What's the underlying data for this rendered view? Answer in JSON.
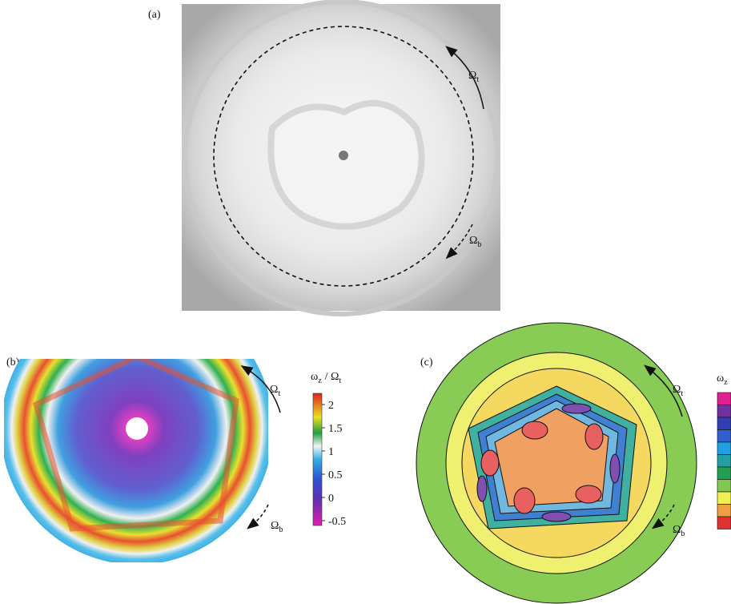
{
  "figure": {
    "panel_a": {
      "label": "(a)",
      "omega_top": {
        "symbol": "Ω",
        "sub": "t"
      },
      "omega_bottom": {
        "symbol": "Ω",
        "sub": "b"
      }
    },
    "panel_b": {
      "label": "(b)",
      "omega_top": {
        "symbol": "Ω",
        "sub": "t"
      },
      "omega_bottom": {
        "symbol": "Ω",
        "sub": "b"
      },
      "colorbar": {
        "label": {
          "num": "ω",
          "num_sub": "z",
          "den": "/ Ω",
          "den_sub": "t"
        },
        "ticks": [
          2,
          1.5,
          1,
          0.5,
          0,
          -0.5
        ]
      }
    },
    "panel_c": {
      "label": "(c)",
      "omega_top": {
        "symbol": "Ω",
        "sub": "t"
      },
      "omega_bottom": {
        "symbol": "Ω",
        "sub": "b"
      },
      "colorbar": {
        "label": {
          "num": "ω",
          "num_sub": "z"
        }
      }
    }
  }
}
